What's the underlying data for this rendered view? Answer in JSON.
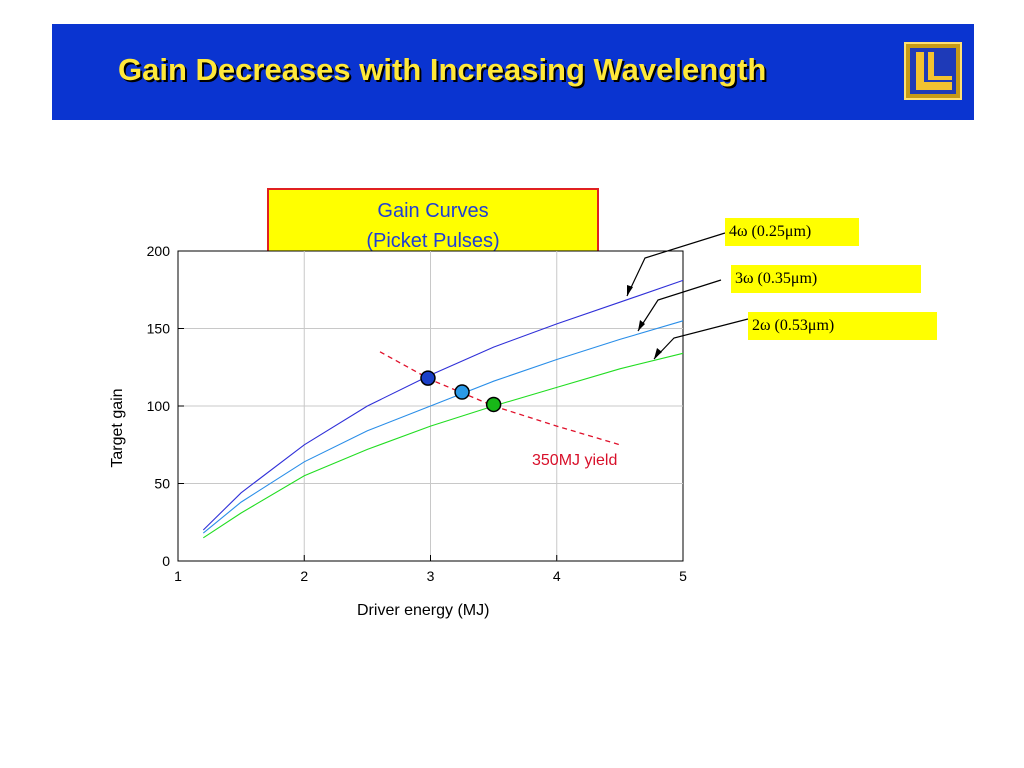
{
  "slide": {
    "title": "Gain Decreases with Increasing Wavelength"
  },
  "gain_box": {
    "line1": "Gain Curves",
    "line2": "(Picket Pulses)"
  },
  "labels": {
    "w4": "4ω (0.25μm)",
    "w3": "3ω (0.35μm)",
    "w2": "2ω (0.53μm)",
    "yield": "350MJ yield"
  },
  "colors": {
    "header_bg": "#0a34d0",
    "title_text": "#ffe83a",
    "series_4w": "#3030d8",
    "series_3w": "#2a8ee8",
    "series_2w": "#22dd22",
    "yield_line": "#e0102a"
  },
  "chart_data": {
    "type": "line",
    "xlabel": "Driver energy (MJ)",
    "ylabel": "Target gain",
    "xlim": [
      1,
      5
    ],
    "ylim": [
      0,
      200
    ],
    "xticks": [
      1,
      2,
      3,
      4,
      5
    ],
    "yticks": [
      0,
      50,
      100,
      150,
      200
    ],
    "grid": true,
    "series": [
      {
        "name": "4ω (0.25μm)",
        "color": "#3030d8",
        "x": [
          1.2,
          1.5,
          2.0,
          2.5,
          3.0,
          3.5,
          4.0,
          4.5,
          5.0
        ],
        "y": [
          20,
          44,
          75,
          100,
          120,
          138,
          153,
          167,
          181
        ]
      },
      {
        "name": "3ω (0.35μm)",
        "color": "#2a8ee8",
        "x": [
          1.2,
          1.5,
          2.0,
          2.5,
          3.0,
          3.5,
          4.0,
          4.5,
          5.0
        ],
        "y": [
          18,
          38,
          64,
          84,
          100,
          116,
          130,
          143,
          155
        ]
      },
      {
        "name": "2ω (0.53μm)",
        "color": "#22dd22",
        "x": [
          1.2,
          1.5,
          2.0,
          2.5,
          3.0,
          3.5,
          4.0,
          4.5,
          5.0
        ],
        "y": [
          15,
          31,
          55,
          72,
          87,
          100,
          112,
          124,
          134
        ]
      },
      {
        "name": "350MJ yield",
        "color": "#e0102a",
        "dashed": true,
        "x": [
          2.6,
          3.0,
          3.5,
          4.0,
          4.5
        ],
        "y": [
          135,
          117,
          100,
          87,
          75
        ]
      }
    ],
    "points": [
      {
        "x": 2.98,
        "y": 118,
        "color": "#1a3fc8"
      },
      {
        "x": 3.25,
        "y": 109,
        "color": "#2a9ae8"
      },
      {
        "x": 3.5,
        "y": 101,
        "color": "#18b818"
      }
    ]
  }
}
